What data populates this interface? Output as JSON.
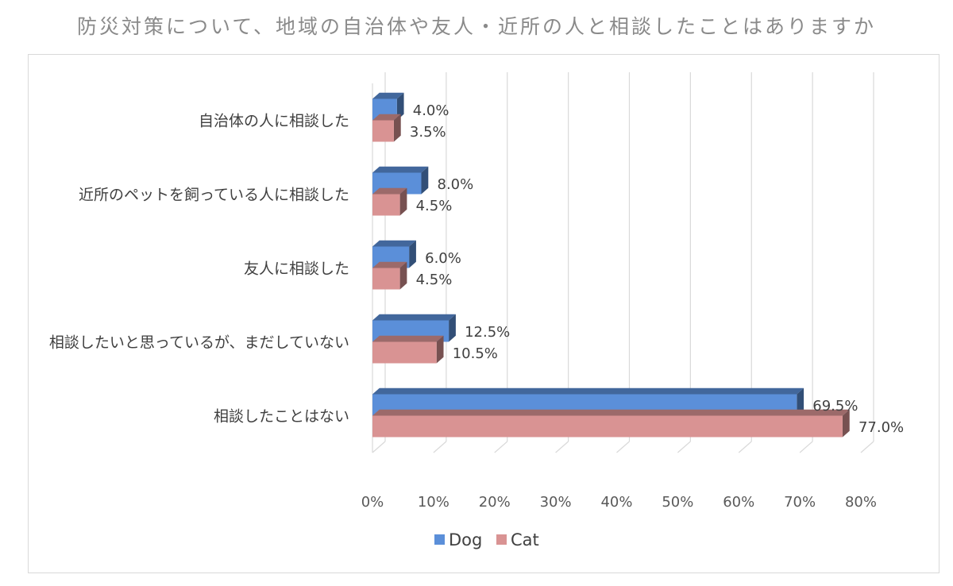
{
  "chart_data": {
    "type": "bar",
    "orientation": "horizontal",
    "title": "防災対策について、地域の自治体や友人・近所の人と相談したことはありますか",
    "categories": [
      "自治体の人に相談した",
      "近所のペットを飼っている人に相談した",
      "友人に相談した",
      "相談したいと思っているが、まだしていない",
      "相談したことはない"
    ],
    "series": [
      {
        "name": "Dog",
        "values": [
          4.0,
          8.0,
          6.0,
          12.5,
          69.5
        ],
        "labels": [
          "4.0%",
          "8.0%",
          "6.0%",
          "12.5%",
          "69.5%"
        ],
        "color": "#5b8fd9"
      },
      {
        "name": "Cat",
        "values": [
          3.5,
          4.5,
          4.5,
          10.5,
          77.0
        ],
        "labels": [
          "3.5%",
          "4.5%",
          "4.5%",
          "10.5%",
          "77.0%"
        ],
        "color": "#d99393"
      }
    ],
    "xticks": [
      "0%",
      "10%",
      "20%",
      "30%",
      "40%",
      "50%",
      "60%",
      "70%",
      "80%"
    ],
    "xlim": [
      0,
      80
    ],
    "unit": "%",
    "grid": true,
    "legend": "bottom",
    "style": "3d"
  }
}
